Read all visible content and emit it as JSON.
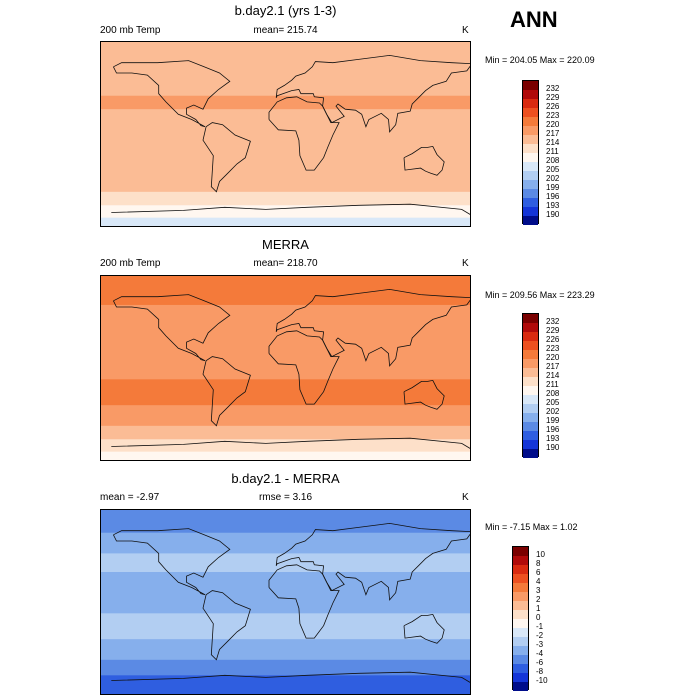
{
  "season_label": "ANN",
  "chart_data": [
    {
      "type": "heatmap",
      "title": "b.day2.1 (yrs 1-3)",
      "left_label": "200 mb Temp",
      "center_label": "mean= 215.74",
      "units": "K",
      "minmax": "Min = 204.05 Max = 220.09",
      "mean": 215.74,
      "min": 204.05,
      "max": 220.09,
      "colorbar_ticks": [
        "232",
        "229",
        "226",
        "223",
        "220",
        "217",
        "214",
        "211",
        "208",
        "205",
        "202",
        "199",
        "196",
        "193",
        "190"
      ],
      "colorbar_colors": [
        "#7a0000",
        "#b00a0a",
        "#d92a10",
        "#ed5020",
        "#f47a3a",
        "#f99a66",
        "#fbbc95",
        "#fde0c9",
        "#fff7f0",
        "#d9e8f8",
        "#b2cef2",
        "#86afec",
        "#5b8ae4",
        "#2f5ee0",
        "#1435d8",
        "#000d8a"
      ],
      "field_bands": [
        {
          "lat_from": 90,
          "lat_to": 55,
          "value": 216.5
        },
        {
          "lat_from": 55,
          "lat_to": 38,
          "value": 215.5
        },
        {
          "lat_from": 38,
          "lat_to": 25,
          "value": 217.5
        },
        {
          "lat_from": 25,
          "lat_to": -15,
          "value": 215.5
        },
        {
          "lat_from": -15,
          "lat_to": -35,
          "value": 216.5
        },
        {
          "lat_from": -35,
          "lat_to": -55,
          "value": 214.5
        },
        {
          "lat_from": -55,
          "lat_to": -68,
          "value": 212.5
        },
        {
          "lat_from": -68,
          "lat_to": -80,
          "value": 209.5
        },
        {
          "lat_from": -80,
          "lat_to": -90,
          "value": 206.5
        }
      ]
    },
    {
      "type": "heatmap",
      "title": "MERRA",
      "left_label": "200 mb Temp",
      "center_label": "mean= 218.70",
      "units": "K",
      "minmax": "Min = 209.56 Max = 223.29",
      "mean": 218.7,
      "min": 209.56,
      "max": 223.29,
      "colorbar_ticks": [
        "232",
        "229",
        "226",
        "223",
        "220",
        "217",
        "214",
        "211",
        "208",
        "205",
        "202",
        "199",
        "196",
        "193",
        "190"
      ],
      "colorbar_colors": [
        "#7a0000",
        "#b00a0a",
        "#d92a10",
        "#ed5020",
        "#f47a3a",
        "#f99a66",
        "#fbbc95",
        "#fde0c9",
        "#fff7f0",
        "#d9e8f8",
        "#b2cef2",
        "#86afec",
        "#5b8ae4",
        "#2f5ee0",
        "#1435d8",
        "#000d8a"
      ],
      "field_bands": [
        {
          "lat_from": 90,
          "lat_to": 62,
          "value": 221.5
        },
        {
          "lat_from": 62,
          "lat_to": 48,
          "value": 219.5
        },
        {
          "lat_from": 48,
          "lat_to": 25,
          "value": 219.5
        },
        {
          "lat_from": 25,
          "lat_to": -10,
          "value": 218.5
        },
        {
          "lat_from": -10,
          "lat_to": -35,
          "value": 220.5
        },
        {
          "lat_from": -35,
          "lat_to": -55,
          "value": 218.5
        },
        {
          "lat_from": -55,
          "lat_to": -68,
          "value": 215.5
        },
        {
          "lat_from": -68,
          "lat_to": -80,
          "value": 212.5
        },
        {
          "lat_from": -80,
          "lat_to": -90,
          "value": 209.5
        }
      ]
    },
    {
      "type": "heatmap",
      "title": "b.day2.1 - MERRA",
      "left_label": "mean =  -2.97",
      "center_label": "rmse =   3.16",
      "units": "K",
      "minmax": "Min =  -7.15 Max =   1.02",
      "mean": -2.97,
      "rmse": 3.16,
      "min": -7.15,
      "max": 1.02,
      "colorbar_ticks": [
        "10",
        "8",
        "6",
        "4",
        "3",
        "2",
        "1",
        "0",
        "-1",
        "-2",
        "-3",
        "-4",
        "-6",
        "-8",
        "-10"
      ],
      "colorbar_colors": [
        "#7a0000",
        "#b00a0a",
        "#d92a10",
        "#ed5020",
        "#f47a3a",
        "#f99a66",
        "#fbbc95",
        "#fde0c9",
        "#fff7f0",
        "#d9e8f8",
        "#b2cef2",
        "#86afec",
        "#5b8ae4",
        "#2f5ee0",
        "#1435d8",
        "#000d8a"
      ],
      "field_bands": [
        {
          "lat_from": 90,
          "lat_to": 68,
          "value": -4.5
        },
        {
          "lat_from": 68,
          "lat_to": 48,
          "value": -3.5
        },
        {
          "lat_from": 48,
          "lat_to": 30,
          "value": -2.5
        },
        {
          "lat_from": 30,
          "lat_to": -10,
          "value": -3.5
        },
        {
          "lat_from": -10,
          "lat_to": -35,
          "value": -2.5
        },
        {
          "lat_from": -35,
          "lat_to": -55,
          "value": -3.5
        },
        {
          "lat_from": -55,
          "lat_to": -70,
          "value": -4.5
        },
        {
          "lat_from": -70,
          "lat_to": -90,
          "value": -7
        }
      ]
    }
  ]
}
